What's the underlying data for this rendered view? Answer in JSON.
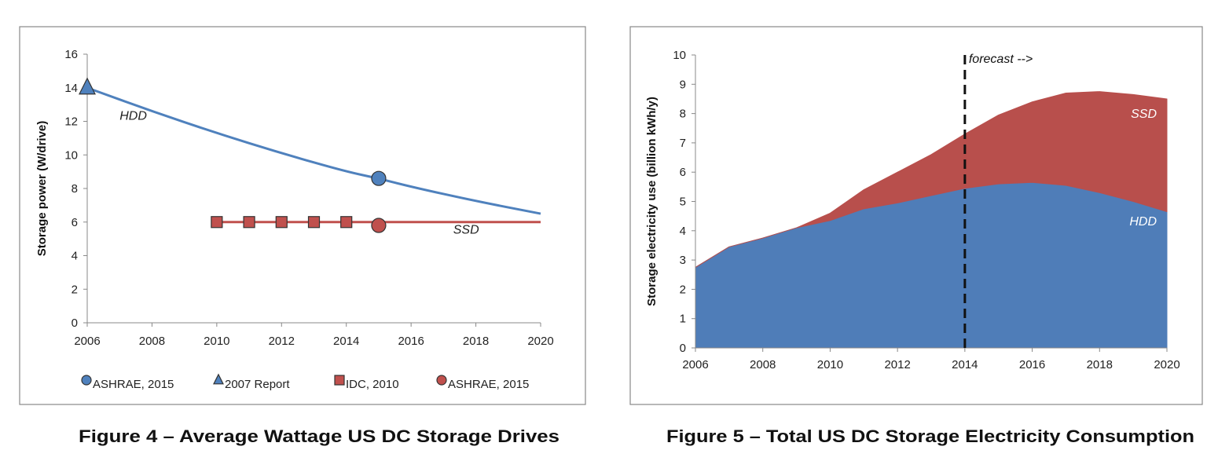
{
  "chart_data": [
    {
      "type": "line",
      "caption": "Figure 4 – Average Wattage US DC Storage Drives",
      "ylabel": "Storage power (W/drive)",
      "xlabel": "",
      "xlim": [
        2006,
        2020
      ],
      "ylim": [
        0,
        16
      ],
      "xticks": [
        2006,
        2008,
        2010,
        2012,
        2014,
        2016,
        2018,
        2020
      ],
      "yticks": [
        0,
        2,
        4,
        6,
        8,
        10,
        12,
        14,
        16
      ],
      "grid": false,
      "legend_placement": "bottom",
      "lines": [
        {
          "label": "HDD",
          "color": "#4f81bd",
          "x": [
            2006,
            2008,
            2010,
            2012,
            2014,
            2015,
            2016,
            2018,
            2020
          ],
          "y": [
            14,
            12.6,
            11.3,
            10.1,
            9.0,
            8.6,
            8.1,
            7.25,
            6.5
          ]
        },
        {
          "label": "SSD",
          "color": "#c0504d",
          "x": [
            2010,
            2020
          ],
          "y": [
            6,
            6
          ]
        }
      ],
      "markers": [
        {
          "name": "ASHRAE, 2015",
          "shape": "circle",
          "color": "#4f81bd",
          "x": [
            2015
          ],
          "y": [
            8.6
          ]
        },
        {
          "name": "2007 Report",
          "shape": "triangle",
          "color": "#4f81bd",
          "x": [
            2006
          ],
          "y": [
            14
          ]
        },
        {
          "name": "IDC, 2010",
          "shape": "square",
          "color": "#c0504d",
          "x": [
            2010,
            2011,
            2012,
            2013,
            2014
          ],
          "y": [
            6,
            6,
            6,
            6,
            6
          ]
        },
        {
          "name": "ASHRAE, 2015",
          "shape": "circle",
          "color": "#c0504d",
          "x": [
            2015
          ],
          "y": [
            5.8
          ]
        }
      ]
    },
    {
      "type": "area",
      "stacked": true,
      "caption": "Figure 5 – Total US DC Storage Electricity Consumption",
      "ylabel": "Storage electricity use (billion kWh/y)",
      "xlabel": "",
      "xlim": [
        2006,
        2020
      ],
      "ylim": [
        0,
        10
      ],
      "xticks": [
        2006,
        2008,
        2010,
        2012,
        2014,
        2016,
        2018,
        2020
      ],
      "yticks": [
        0,
        1,
        2,
        3,
        4,
        5,
        6,
        7,
        8,
        9,
        10
      ],
      "grid": false,
      "x": [
        2006,
        2007,
        2008,
        2009,
        2010,
        2011,
        2012,
        2013,
        2014,
        2015,
        2016,
        2017,
        2018,
        2019,
        2020
      ],
      "series": [
        {
          "name": "HDD",
          "color": "#4f7db8",
          "values": [
            2.75,
            3.45,
            3.75,
            4.1,
            4.35,
            4.75,
            4.95,
            5.2,
            5.45,
            5.6,
            5.65,
            5.55,
            5.3,
            5.0,
            4.65
          ]
        },
        {
          "name": "SSD",
          "color": "#b84f4c",
          "values": [
            0,
            0,
            0,
            0,
            0.25,
            0.65,
            1.05,
            1.4,
            1.85,
            2.35,
            2.75,
            3.15,
            3.45,
            3.65,
            3.85
          ]
        }
      ],
      "annotations": [
        {
          "text": "forecast -->",
          "x": 2014,
          "style": "dashed-vertical-line"
        }
      ]
    }
  ]
}
